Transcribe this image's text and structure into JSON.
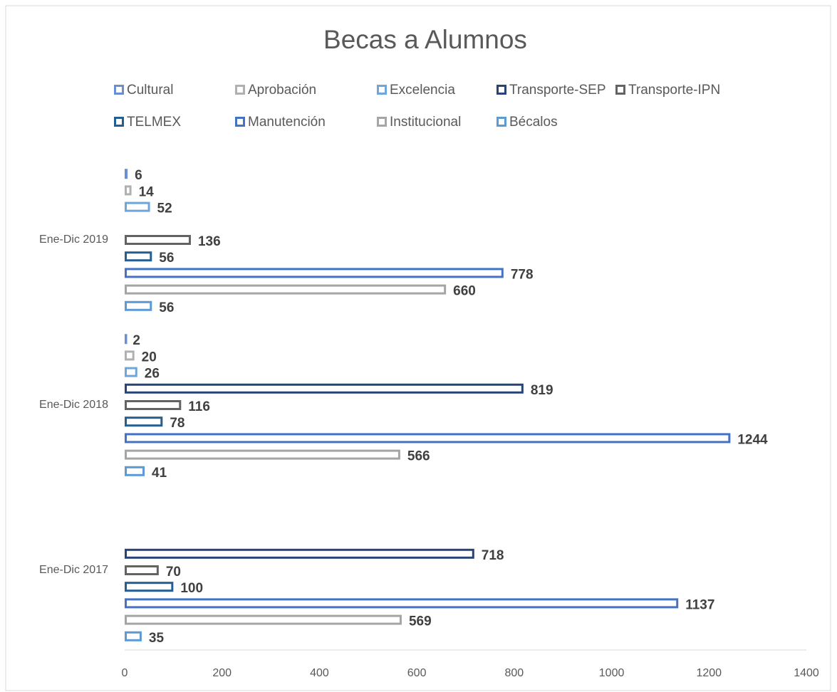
{
  "chart_data": {
    "type": "bar",
    "orientation": "horizontal",
    "title": "Becas a Alumnos",
    "categories": [
      "Ene-Dic 2017",
      "Ene-Dic 2018",
      "Ene-Dic 2019"
    ],
    "series": [
      {
        "name": "Cultural",
        "color": "#6a8fd0",
        "values": [
          null,
          2,
          6
        ]
      },
      {
        "name": "Aprobación",
        "color": "#b0b0b0",
        "values": [
          null,
          20,
          14
        ]
      },
      {
        "name": "Excelencia",
        "color": "#6fa6da",
        "values": [
          null,
          26,
          52
        ]
      },
      {
        "name": "Transporte-SEP",
        "color": "#264478",
        "values": [
          718,
          819,
          null
        ]
      },
      {
        "name": "Transporte-IPN",
        "color": "#636363",
        "values": [
          70,
          116,
          136
        ]
      },
      {
        "name": "TELMEX",
        "color": "#255e91",
        "values": [
          100,
          78,
          56
        ]
      },
      {
        "name": "Manutención",
        "color": "#4472c4",
        "values": [
          1137,
          1244,
          778
        ]
      },
      {
        "name": "Institucional",
        "color": "#a5a5a5",
        "values": [
          569,
          566,
          660
        ]
      },
      {
        "name": "Bécalos",
        "color": "#5b9bd5",
        "values": [
          35,
          41,
          56
        ]
      }
    ],
    "xlim": [
      0,
      1400
    ],
    "xticks": [
      0,
      200,
      400,
      600,
      800,
      1000,
      1200,
      1400
    ],
    "legend": "top",
    "grid": false
  }
}
